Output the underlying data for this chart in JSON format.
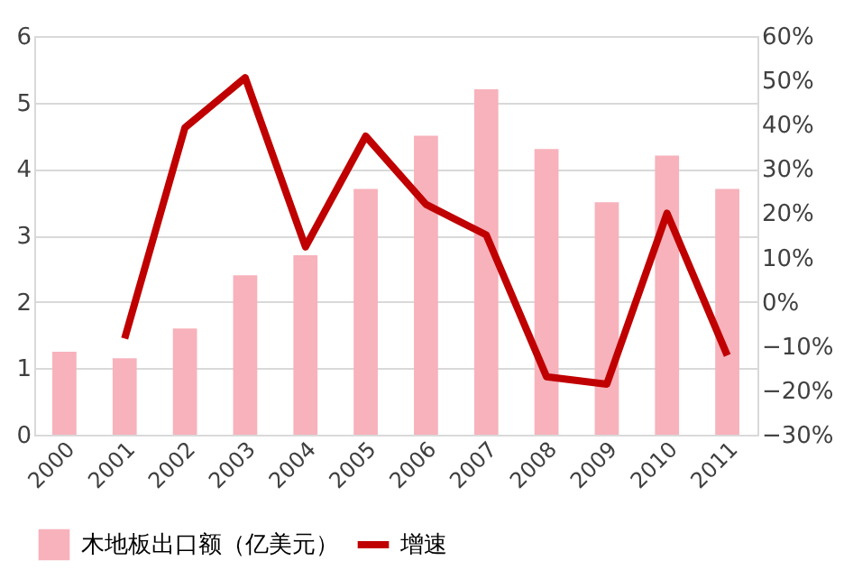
{
  "chart_data": {
    "type": "bar",
    "categories": [
      "2000",
      "2001",
      "2002",
      "2003",
      "2004",
      "2005",
      "2006",
      "2007",
      "2008",
      "2009",
      "2010",
      "2011"
    ],
    "series": [
      {
        "name": "木地板出口额（亿美元）",
        "color": "#f7b2bb",
        "values": [
          1.25,
          1.15,
          1.6,
          2.4,
          2.7,
          3.7,
          4.5,
          5.2,
          4.3,
          3.5,
          4.2,
          3.7
        ]
      },
      {
        "name": "增速",
        "type": "line",
        "axis": "y2",
        "color": "#c00000",
        "values": [
          null,
          -8.3,
          39.3,
          50.6,
          12.4,
          37.4,
          22,
          15.1,
          -16.9,
          -18.6,
          20,
          -12.1
        ]
      }
    ],
    "ylim": [
      0,
      6
    ],
    "yticks": [
      0,
      1,
      2,
      3,
      4,
      5,
      6
    ],
    "y2lim": [
      -30,
      60
    ],
    "y2ticks": [
      {
        "value": -30,
        "label": "−30%"
      },
      {
        "value": -20,
        "label": "−20%"
      },
      {
        "value": -10,
        "label": "−10%"
      },
      {
        "value": 0,
        "label": "0%"
      },
      {
        "value": 10,
        "label": "10%"
      },
      {
        "value": 20,
        "label": "20%"
      },
      {
        "value": 30,
        "label": "30%"
      },
      {
        "value": 40,
        "label": "40%"
      },
      {
        "value": 50,
        "label": "50%"
      },
      {
        "value": 60,
        "label": "60%"
      }
    ],
    "grid": "y",
    "legend": "bottom",
    "marker": "none",
    "line_style": "solid"
  }
}
